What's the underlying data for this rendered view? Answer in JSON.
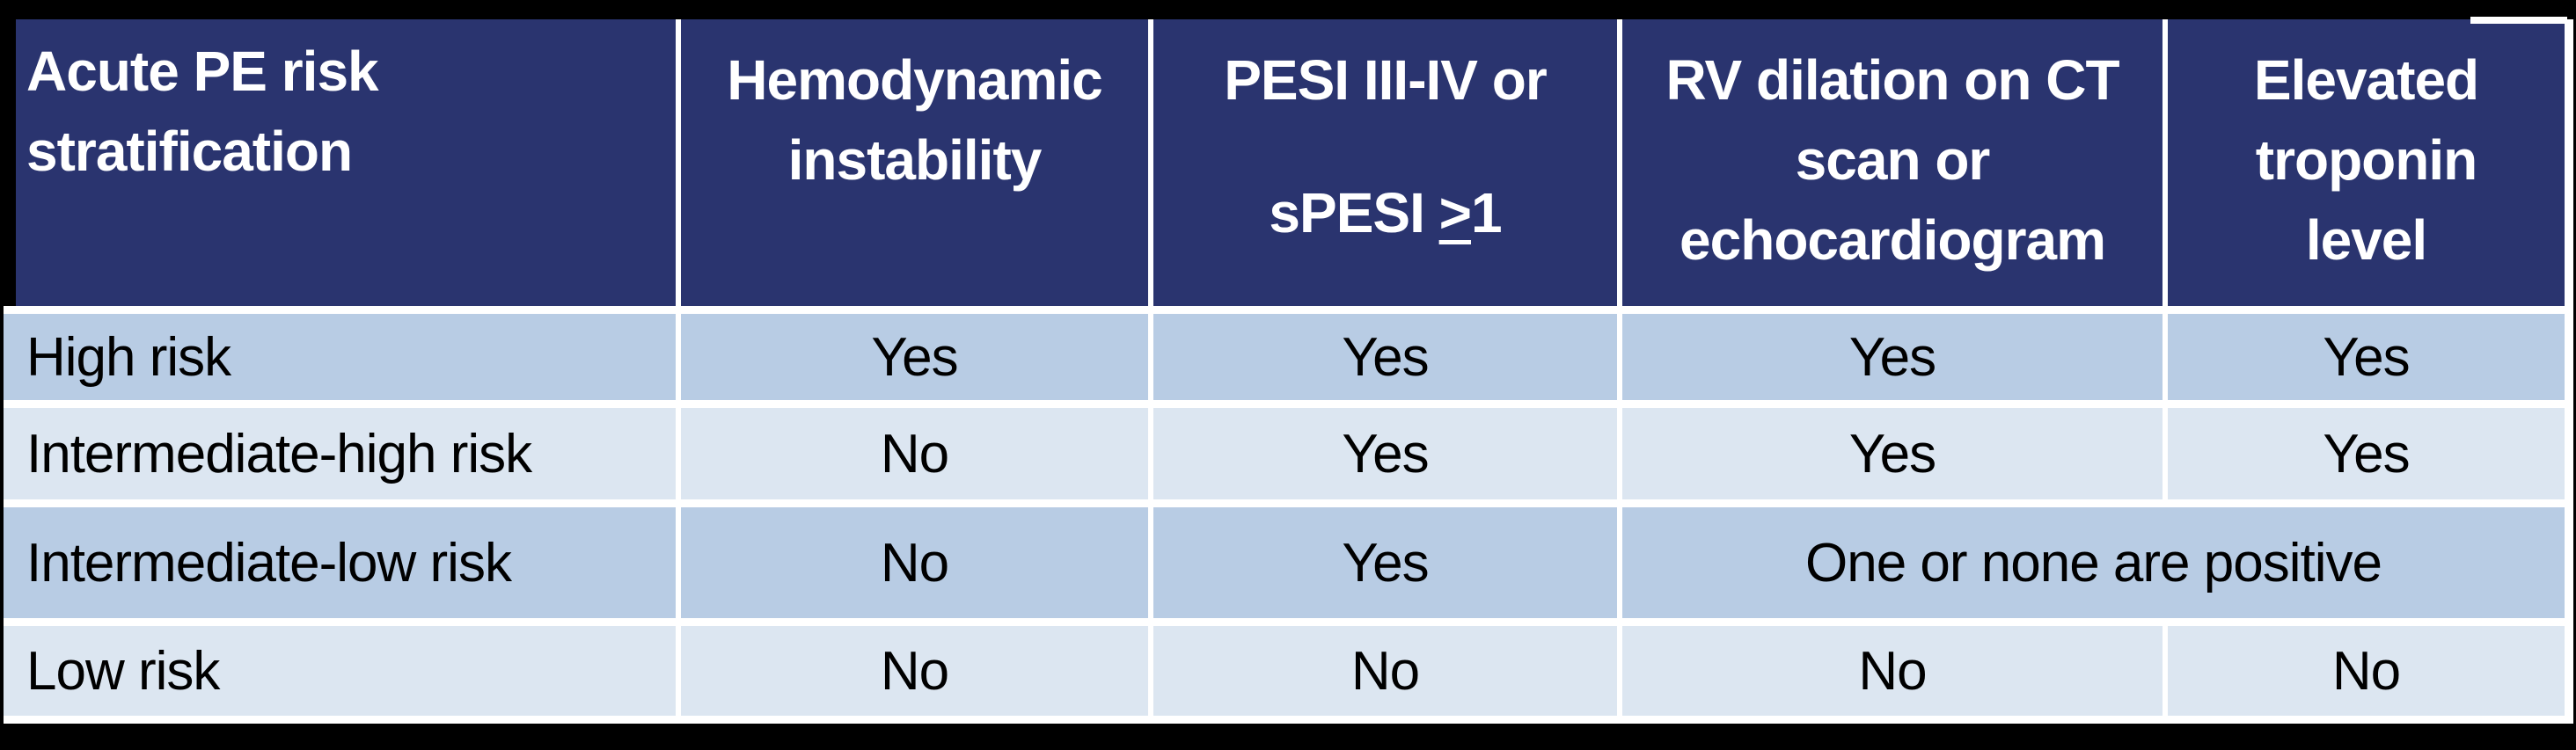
{
  "colors": {
    "page_bg": "#000000",
    "header_bg": "#2A346F",
    "header_text": "#FFFFFF",
    "row_a": "#B8CCE4",
    "row_b": "#DCE6F1",
    "gap": "#FFFFFF",
    "body_text": "#000000"
  },
  "table": {
    "headers": [
      {
        "lines": [
          "Acute PE risk",
          "stratification"
        ]
      },
      {
        "lines": [
          "Hemodynamic",
          "instability"
        ]
      },
      {
        "line1": "PESI III-IV or",
        "line2_prefix": "sPESI ",
        "line2_symbol": ">",
        "line2_suffix": "1"
      },
      {
        "lines": [
          "RV dilation on CT",
          "scan or",
          "echocardiogram"
        ]
      },
      {
        "lines": [
          "Elevated",
          "troponin",
          "level"
        ]
      }
    ],
    "rows": [
      {
        "label": "High risk",
        "values": [
          "Yes",
          "Yes",
          "Yes",
          "Yes"
        ]
      },
      {
        "label": "Intermediate-high risk",
        "values": [
          "No",
          "Yes",
          "Yes",
          "Yes"
        ]
      },
      {
        "label": "Intermediate-low risk",
        "values": [
          "No",
          "Yes"
        ],
        "merged_value": "One or none are positive"
      },
      {
        "label": "Low risk",
        "values": [
          "No",
          "No",
          "No",
          "No"
        ]
      }
    ]
  }
}
